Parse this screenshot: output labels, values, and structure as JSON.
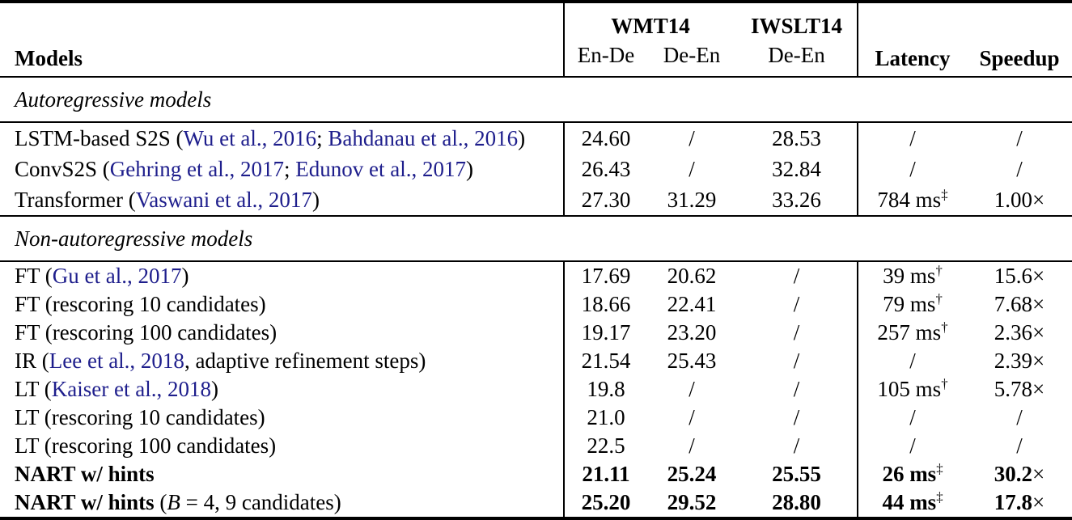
{
  "colors": {
    "text": "#000000",
    "citation_link": "#1e1e8c",
    "rule": "#000000",
    "background": "#ffffff"
  },
  "table": {
    "header": {
      "models": "Models",
      "group_wmt14": "WMT14",
      "group_iwslt14": "IWSLT14",
      "col_wmt_en_de": "En-De",
      "col_wmt_de_en": "De-En",
      "col_iwslt_de_en": "De-En",
      "col_latency": "Latency",
      "col_speedup": "Speedup"
    },
    "sections": {
      "autoregressive": "Autoregressive models",
      "non_autoregressive": "Non-autoregressive models"
    },
    "rows": [
      {
        "name": [
          "LSTM-based S2S (",
          "Wu et al., 2016",
          "; ",
          "Bahdanau et al., 2016",
          ")"
        ],
        "wmt_en_de": "24.60",
        "wmt_de_en": "/",
        "iwslt_de_en": "28.53",
        "latency": {
          "t": "/",
          "sup": ""
        },
        "speedup": {
          "v": "/",
          "x": ""
        }
      },
      {
        "name": [
          "ConvS2S (",
          "Gehring et al., 2017",
          "; ",
          "Edunov et al., 2017",
          ")"
        ],
        "wmt_en_de": "26.43",
        "wmt_de_en": "/",
        "iwslt_de_en": "32.84",
        "latency": {
          "t": "/",
          "sup": ""
        },
        "speedup": {
          "v": "/",
          "x": ""
        }
      },
      {
        "name": [
          "Transformer (",
          "Vaswani et al., 2017",
          ")"
        ],
        "wmt_en_de": "27.30",
        "wmt_de_en": "31.29",
        "iwslt_de_en": "33.26",
        "latency": {
          "t": "784 ms",
          "sup": "‡"
        },
        "speedup": {
          "v": "1.00",
          "x": "×"
        }
      },
      {
        "name": [
          "FT (",
          "Gu et al., 2017",
          ")"
        ],
        "wmt_en_de": "17.69",
        "wmt_de_en": "20.62",
        "iwslt_de_en": "/",
        "latency": {
          "t": "39 ms",
          "sup": "†"
        },
        "speedup": {
          "v": "15.6",
          "x": "×"
        }
      },
      {
        "name": [
          "FT (rescoring 10 candidates)"
        ],
        "wmt_en_de": "18.66",
        "wmt_de_en": "22.41",
        "iwslt_de_en": "/",
        "latency": {
          "t": "79 ms",
          "sup": "†"
        },
        "speedup": {
          "v": "7.68",
          "x": "×"
        }
      },
      {
        "name": [
          "FT (rescoring 100 candidates)"
        ],
        "wmt_en_de": "19.17",
        "wmt_de_en": "23.20",
        "iwslt_de_en": "/",
        "latency": {
          "t": "257 ms",
          "sup": "†"
        },
        "speedup": {
          "v": "2.36",
          "x": "×"
        }
      },
      {
        "name": [
          "IR (",
          "Lee et al., 2018",
          ", adaptive refinement steps)"
        ],
        "wmt_en_de": "21.54",
        "wmt_de_en": "25.43",
        "iwslt_de_en": "/",
        "latency": {
          "t": "/",
          "sup": ""
        },
        "speedup": {
          "v": "2.39",
          "x": "×"
        }
      },
      {
        "name": [
          "LT (",
          "Kaiser et al., 2018",
          ")"
        ],
        "wmt_en_de": "19.8",
        "wmt_de_en": "/",
        "iwslt_de_en": "/",
        "latency": {
          "t": "105 ms",
          "sup": "†"
        },
        "speedup": {
          "v": "5.78",
          "x": "×"
        }
      },
      {
        "name": [
          "LT (rescoring 10 candidates)"
        ],
        "wmt_en_de": "21.0",
        "wmt_de_en": "/",
        "iwslt_de_en": "/",
        "latency": {
          "t": "/",
          "sup": ""
        },
        "speedup": {
          "v": "/",
          "x": ""
        }
      },
      {
        "name": [
          "LT (rescoring 100 candidates)"
        ],
        "wmt_en_de": "22.5",
        "wmt_de_en": "/",
        "iwslt_de_en": "/",
        "latency": {
          "t": "/",
          "sup": ""
        },
        "speedup": {
          "v": "/",
          "x": ""
        }
      },
      {
        "name": [
          "NART w/ hints"
        ],
        "wmt_en_de": "21.11",
        "wmt_de_en": "25.24",
        "iwslt_de_en": "25.55",
        "latency": {
          "t": "26 ms",
          "sup": "‡"
        },
        "speedup": {
          "v": "30.2",
          "x": "×"
        }
      },
      {
        "name": [
          "NART w/ hints",
          " (",
          "B",
          " = 4, 9 candidates)"
        ],
        "wmt_en_de": "25.20",
        "wmt_de_en": "29.52",
        "iwslt_de_en": "28.80",
        "latency": {
          "t": "44 ms",
          "sup": "‡"
        },
        "speedup": {
          "v": "17.8",
          "x": "×"
        }
      }
    ]
  }
}
